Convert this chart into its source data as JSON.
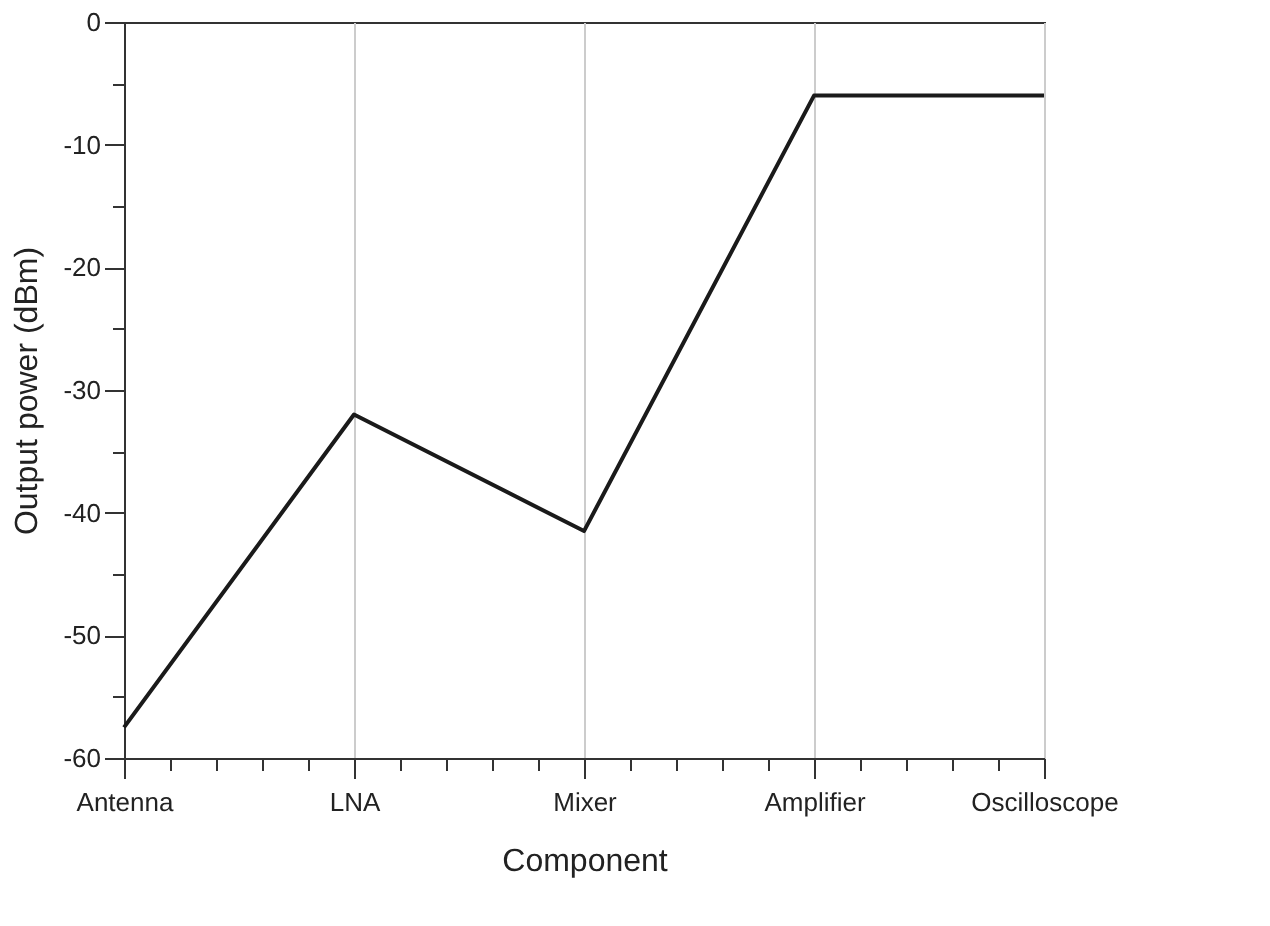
{
  "chart_data": {
    "type": "line",
    "xlabel": "Component",
    "ylabel": "Output power (dBm)",
    "categories": [
      "Antenna",
      "LNA",
      "Mixer",
      "Amplifier",
      "Oscilloscope"
    ],
    "series": [
      {
        "color": "#1a1a1a",
        "values": [
          -57.5,
          -32,
          -41.5,
          -6,
          -6
        ]
      }
    ],
    "ylim": [
      -60,
      0
    ],
    "yticks": [
      -60,
      {
        "value": -55,
        "label": null
      },
      -50,
      {
        "value": -45,
        "label": null
      },
      -40,
      {
        "value": -35,
        "label": null
      },
      -30,
      {
        "value": -25,
        "label": null
      },
      -20,
      {
        "value": -15,
        "label": null
      },
      -10,
      {
        "value": -5,
        "label": null
      },
      0
    ],
    "grid": "x",
    "marker": "none",
    "line_style": "solid"
  }
}
